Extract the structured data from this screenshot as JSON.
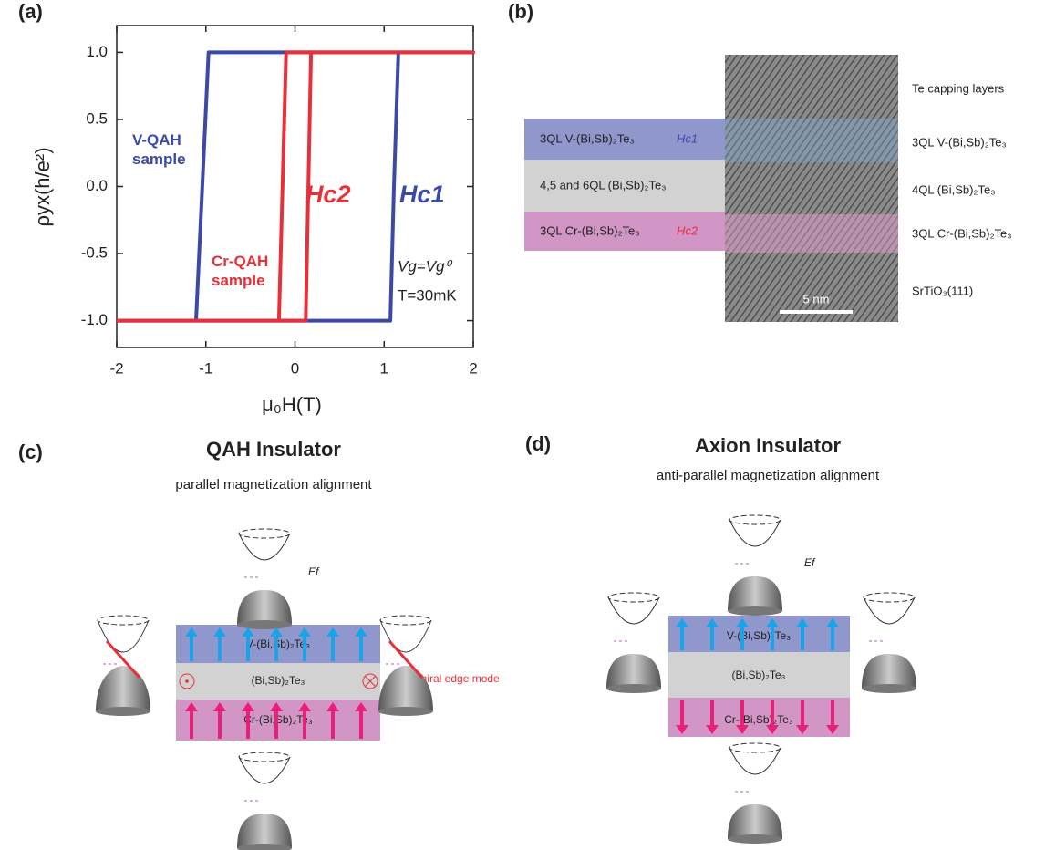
{
  "panel_labels": [
    "(a)",
    "(b)",
    "(c)",
    "(d)"
  ],
  "chart_data": {
    "type": "line",
    "x_label": "μ₀H(T)",
    "y_label": "ρyx(h/e²)",
    "xlim": [
      -2,
      2
    ],
    "ylim": [
      -1.2,
      1.2
    ],
    "xticks": [
      -2,
      -1,
      0,
      1,
      2
    ],
    "yticks": [
      {
        "value": -1,
        "label": "-1.0"
      },
      {
        "value": -0.5,
        "label": "-0.5"
      },
      {
        "value": 0,
        "label": "0.0"
      },
      {
        "value": 0.5,
        "label": "0.5"
      },
      {
        "value": 1,
        "label": "1.0"
      }
    ],
    "series": [
      {
        "name": "V-QAH sample",
        "color": "#3b4aa6",
        "x": [
          -2,
          1.07,
          1.11,
          1.16,
          2,
          -0.97,
          -1.04,
          -1.11,
          -2
        ],
        "values": [
          -1,
          -1,
          0,
          1,
          1,
          1,
          0,
          -1,
          -1
        ]
      },
      {
        "name": "Cr-QAH sample",
        "color": "#e8303a",
        "x": [
          -2,
          0.12,
          0.15,
          0.18,
          2,
          -0.1,
          -0.14,
          -0.18,
          -2
        ],
        "values": [
          -1,
          -1,
          0,
          1,
          1,
          1,
          0,
          -1,
          -1
        ]
      }
    ],
    "annotations": [
      "Hc2",
      "Hc1",
      "Vg=Vg⁰",
      "T=30mK"
    ]
  },
  "panel_b": {
    "left_layers": [
      {
        "label": "3QL V-(Bi,Sb)₂Te₃",
        "field": "Hc1"
      },
      {
        "label": "4,5 and 6QL (Bi,Sb)₂Te₃"
      },
      {
        "label": "3QL Cr-(Bi,Sb)₂Te₃",
        "field": "Hc2"
      }
    ],
    "right_labels": [
      "Te capping layers",
      "3QL V-(Bi,Sb)₂Te₃",
      "4QL (Bi,Sb)₂Te₃",
      "3QL Cr-(Bi,Sb)₂Te₃",
      "SrTiO₃(111)"
    ],
    "scale_bar": "5 nm"
  },
  "panel_c": {
    "title": "QAH Insulator",
    "subtitle": "parallel magnetization alignment",
    "layers": [
      "V-(Bi,Sb)₂Te₃",
      "(Bi,Sb)₂Te₃",
      "Cr-(Bi,Sb)₂Te₃"
    ],
    "edge_mode": "Chiral edge mode",
    "fermi": "Ef"
  },
  "panel_d": {
    "title": "Axion Insulator",
    "subtitle": "anti-parallel magnetization alignment",
    "layers": [
      "V-(Bi,Sb)₂Te₃",
      "(Bi,Sb)₂Te₃",
      "Cr-(Bi,Sb)₂Te₃"
    ],
    "fermi": "Ef"
  }
}
